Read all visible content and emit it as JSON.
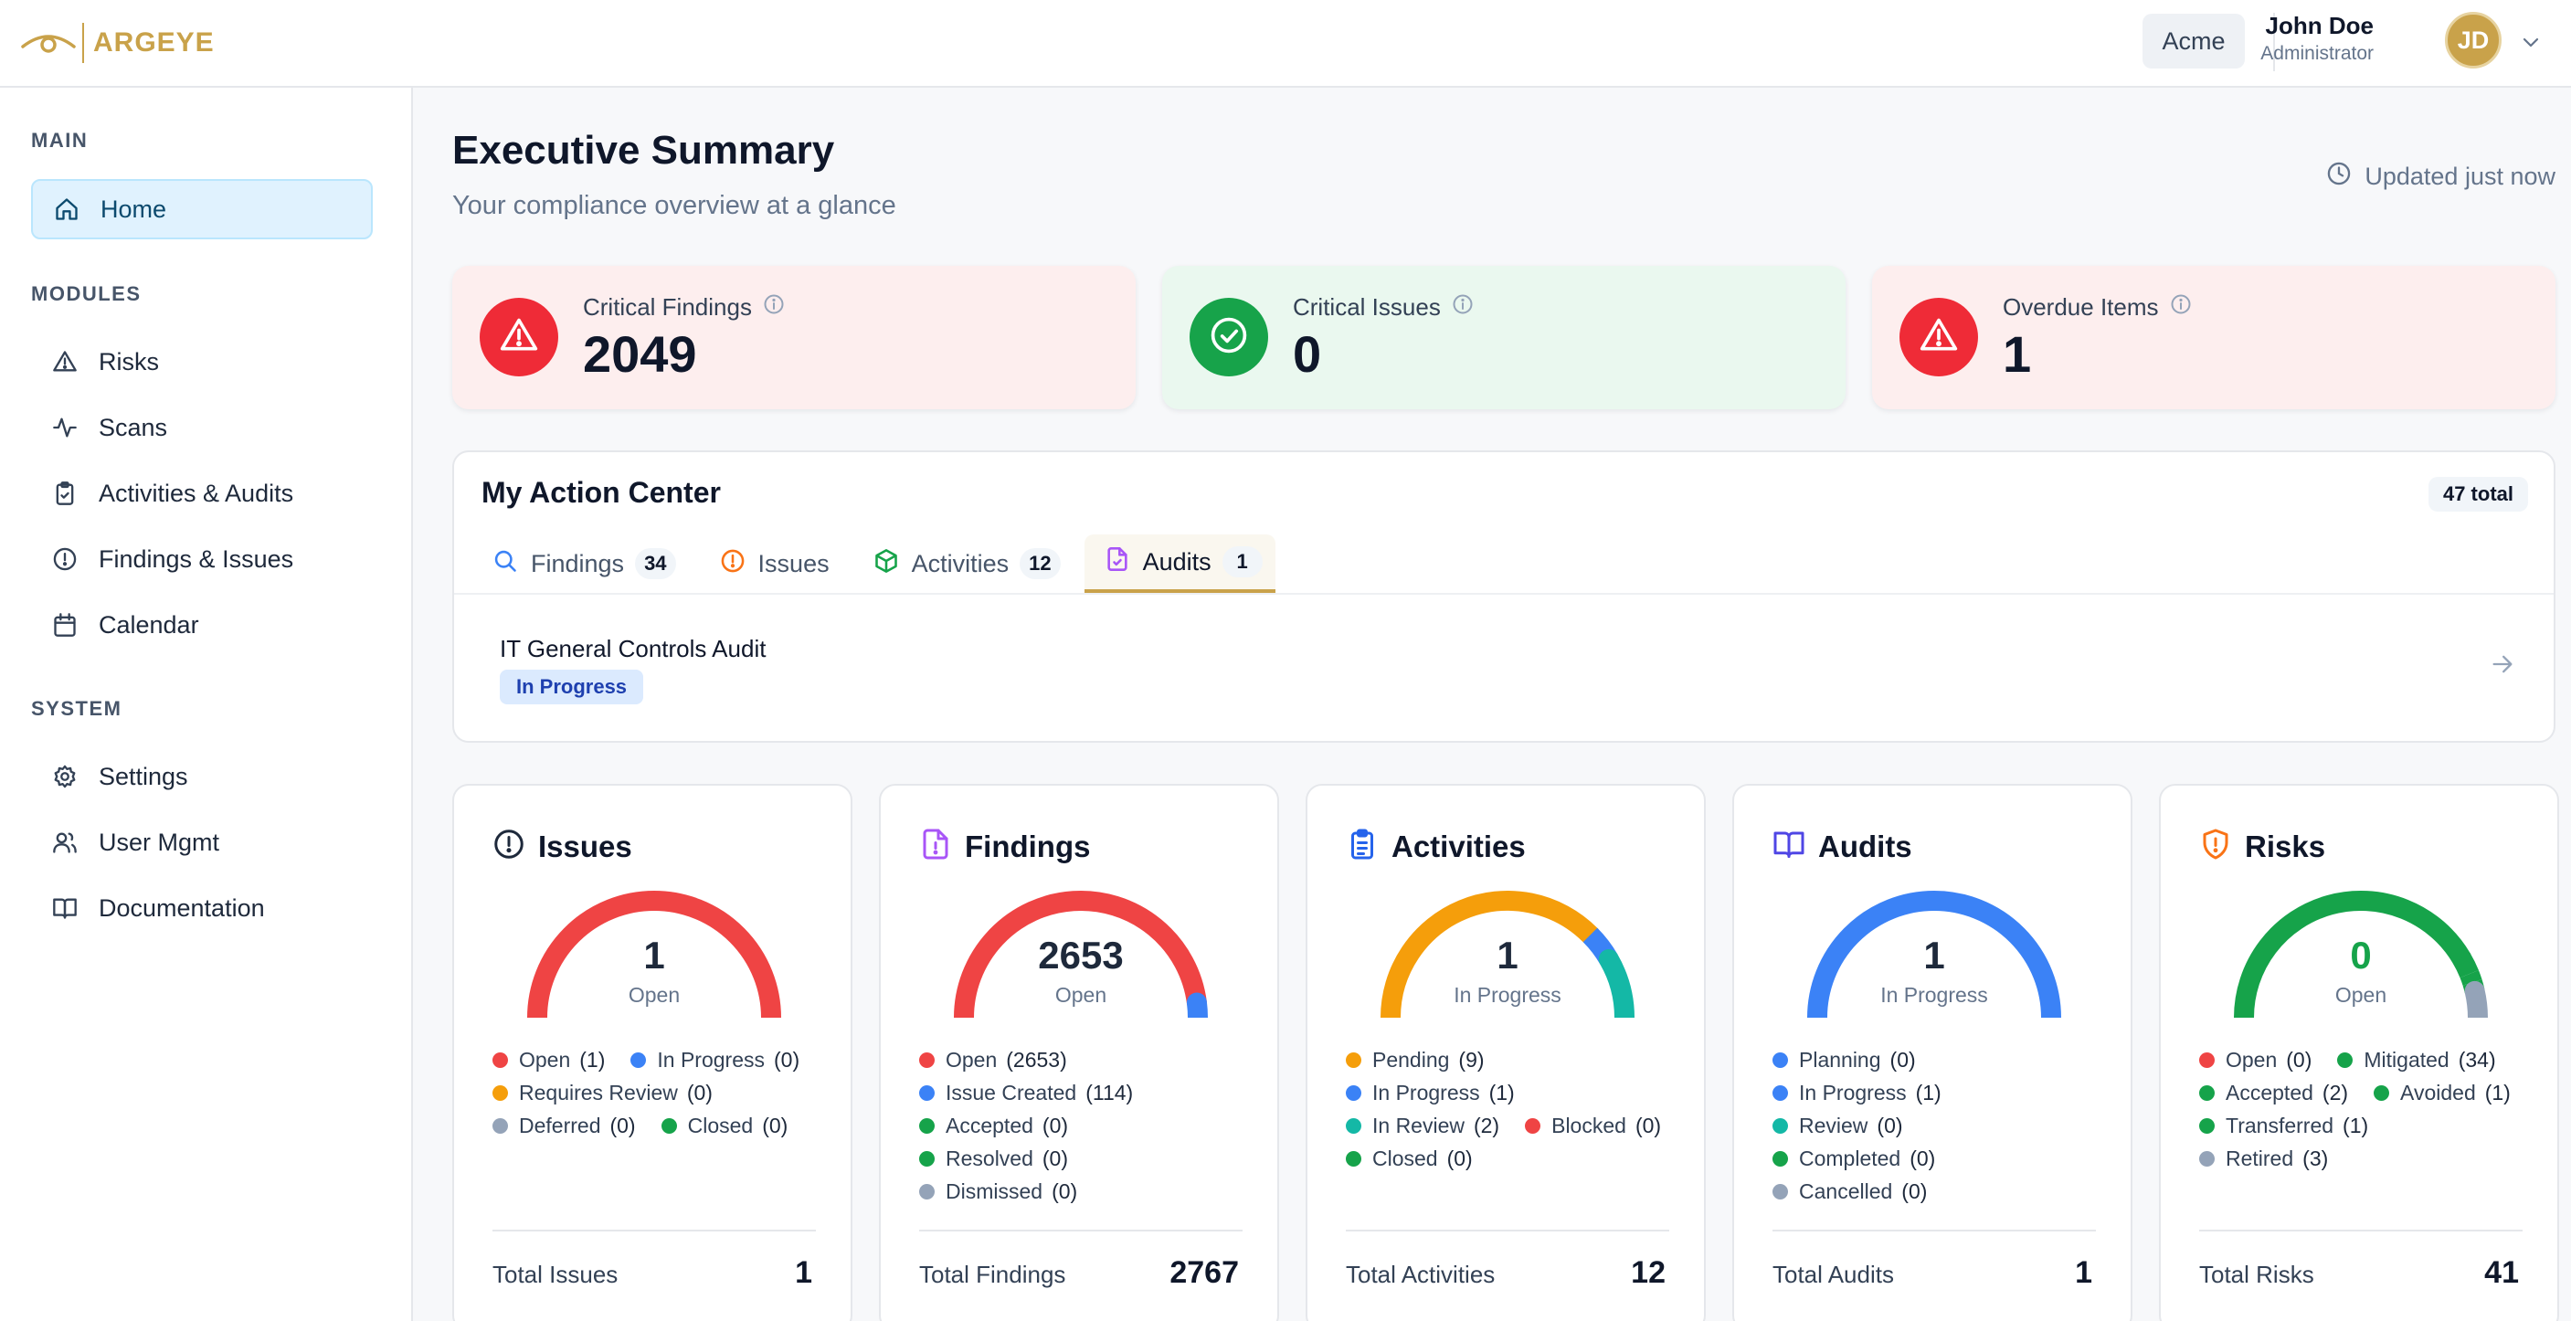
{
  "brand": {
    "name": "ARGEYE"
  },
  "topbar": {
    "org": "Acme",
    "user_name": "John Doe",
    "user_role": "Administrator",
    "user_initials": "JD"
  },
  "sidebar": {
    "main_label": "MAIN",
    "home": "Home",
    "modules_label": "MODULES",
    "modules": [
      "Risks",
      "Scans",
      "Activities & Audits",
      "Findings & Issues",
      "Calendar"
    ],
    "system_label": "SYSTEM",
    "system": [
      "Settings",
      "User Mgmt",
      "Documentation"
    ]
  },
  "header": {
    "title": "Executive Summary",
    "subtitle": "Your compliance overview at a glance",
    "updated": "Updated just now"
  },
  "kpis": [
    {
      "label": "Critical Findings",
      "value": "2049",
      "color": "#ef2b37"
    },
    {
      "label": "Critical Issues",
      "value": "0",
      "color": "#17a34a"
    },
    {
      "label": "Overdue Items",
      "value": "1",
      "color": "#ef2b37"
    }
  ],
  "action_center": {
    "title": "My Action Center",
    "total": "47 total",
    "tabs": [
      {
        "label": "Findings",
        "count": "34"
      },
      {
        "label": "Issues",
        "count": ""
      },
      {
        "label": "Activities",
        "count": "12"
      },
      {
        "label": "Audits",
        "count": "1"
      }
    ],
    "active_tab": "Audits",
    "items": [
      {
        "title": "IT General Controls Audit",
        "status": "In Progress"
      }
    ]
  },
  "cards": [
    {
      "title": "Issues",
      "value": "1",
      "value_label": "Open",
      "value_color": "#1e293b",
      "segments": [
        {
          "color": "#ef4444",
          "value": 1
        }
      ],
      "legend_rows": [
        [
          {
            "label": "Open",
            "count": "(1)",
            "color": "#ef4444"
          },
          {
            "label": "In Progress",
            "count": "(0)",
            "color": "#3b82f6"
          }
        ],
        [
          {
            "label": "Requires Review",
            "count": "(0)",
            "color": "#f59e0b"
          }
        ],
        [
          {
            "label": "Deferred",
            "count": "(0)",
            "color": "#94a3b8"
          },
          {
            "label": "Closed",
            "count": "(0)",
            "color": "#16a34a"
          }
        ]
      ],
      "total_label": "Total Issues",
      "total": "1"
    },
    {
      "title": "Findings",
      "value": "2653",
      "value_label": "Open",
      "value_color": "#1e293b",
      "segments": [
        {
          "color": "#ef4444",
          "value": 2653
        },
        {
          "color": "#3b82f6",
          "value": 114
        }
      ],
      "legend_rows": [
        [
          {
            "label": "Open",
            "count": "(2653)",
            "color": "#ef4444"
          }
        ],
        [
          {
            "label": "Issue Created",
            "count": "(114)",
            "color": "#3b82f6"
          }
        ],
        [
          {
            "label": "Accepted",
            "count": "(0)",
            "color": "#16a34a"
          }
        ],
        [
          {
            "label": "Resolved",
            "count": "(0)",
            "color": "#16a34a"
          }
        ],
        [
          {
            "label": "Dismissed",
            "count": "(0)",
            "color": "#94a3b8"
          }
        ]
      ],
      "total_label": "Total Findings",
      "total": "2767"
    },
    {
      "title": "Activities",
      "value": "1",
      "value_label": "In Progress",
      "value_color": "#1e293b",
      "segments": [
        {
          "color": "#f59e0b",
          "value": 9
        },
        {
          "color": "#3b82f6",
          "value": 1
        },
        {
          "color": "#14b8a6",
          "value": 2
        }
      ],
      "legend_rows": [
        [
          {
            "label": "Pending",
            "count": "(9)",
            "color": "#f59e0b"
          }
        ],
        [
          {
            "label": "In Progress",
            "count": "(1)",
            "color": "#3b82f6"
          }
        ],
        [
          {
            "label": "In Review",
            "count": "(2)",
            "color": "#14b8a6"
          },
          {
            "label": "Blocked",
            "count": "(0)",
            "color": "#ef4444"
          }
        ],
        [
          {
            "label": "Closed",
            "count": "(0)",
            "color": "#16a34a"
          }
        ]
      ],
      "total_label": "Total Activities",
      "total": "12"
    },
    {
      "title": "Audits",
      "value": "1",
      "value_label": "In Progress",
      "value_color": "#1e293b",
      "segments": [
        {
          "color": "#3b82f6",
          "value": 1
        }
      ],
      "legend_rows": [
        [
          {
            "label": "Planning",
            "count": "(0)",
            "color": "#3b82f6"
          }
        ],
        [
          {
            "label": "In Progress",
            "count": "(1)",
            "color": "#3b82f6"
          }
        ],
        [
          {
            "label": "Review",
            "count": "(0)",
            "color": "#14b8a6"
          }
        ],
        [
          {
            "label": "Completed",
            "count": "(0)",
            "color": "#16a34a"
          }
        ],
        [
          {
            "label": "Cancelled",
            "count": "(0)",
            "color": "#94a3b8"
          }
        ]
      ],
      "total_label": "Total Audits",
      "total": "1"
    },
    {
      "title": "Risks",
      "value": "0",
      "value_label": "Open",
      "value_color": "#16a34a",
      "segments": [
        {
          "color": "#16a34a",
          "value": 34
        },
        {
          "color": "#16a34a",
          "value": 2
        },
        {
          "color": "#16a34a",
          "value": 1
        },
        {
          "color": "#16a34a",
          "value": 1
        },
        {
          "color": "#94a3b8",
          "value": 3
        }
      ],
      "legend_rows": [
        [
          {
            "label": "Open",
            "count": "(0)",
            "color": "#ef4444"
          },
          {
            "label": "Mitigated",
            "count": "(34)",
            "color": "#16a34a"
          }
        ],
        [
          {
            "label": "Accepted",
            "count": "(2)",
            "color": "#16a34a"
          },
          {
            "label": "Avoided",
            "count": "(1)",
            "color": "#16a34a"
          }
        ],
        [
          {
            "label": "Transferred",
            "count": "(1)",
            "color": "#16a34a"
          }
        ],
        [
          {
            "label": "Retired",
            "count": "(3)",
            "color": "#94a3b8"
          }
        ]
      ],
      "total_label": "Total Risks",
      "total": "41"
    }
  ]
}
